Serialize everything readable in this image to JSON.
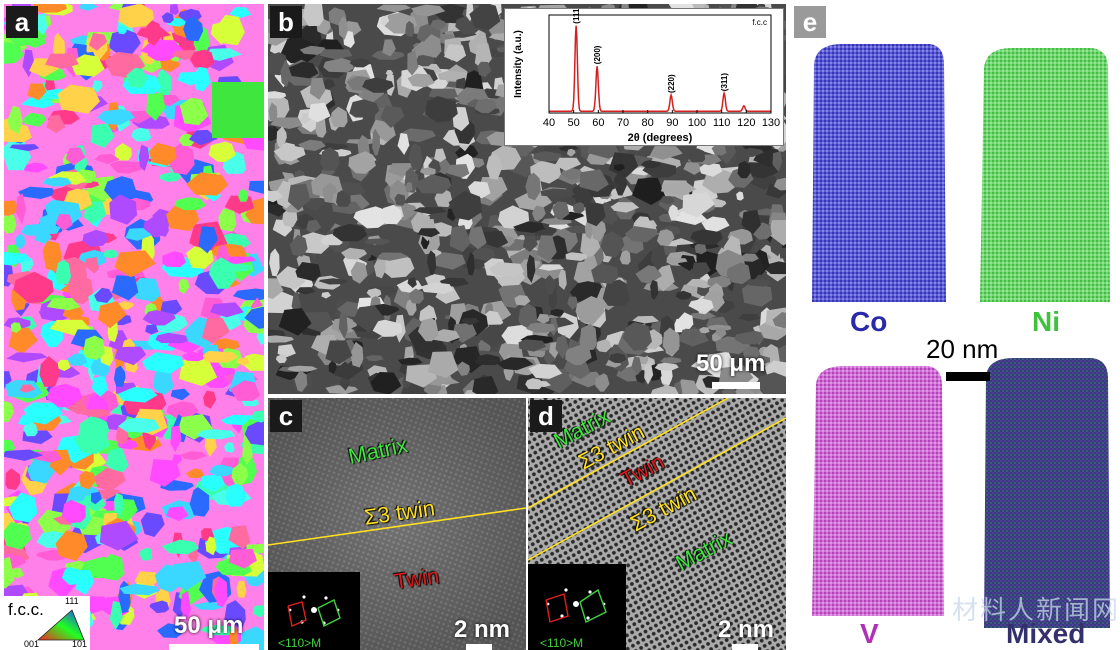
{
  "panel_a": {
    "label": "a",
    "scale": "50 μm",
    "legend": {
      "title": "f.c.c.",
      "top": "111",
      "left": "001",
      "right": "101"
    }
  },
  "panel_b": {
    "label": "b",
    "scale": "50 μm",
    "inset": {
      "type": "line",
      "title": "f.c.c",
      "xlabel": "2θ (degrees)",
      "ylabel": "Intensity (a.u.)",
      "xlim": [
        40,
        130
      ],
      "xticks": [
        "40",
        "50",
        "60",
        "70",
        "80",
        "90",
        "100",
        "110",
        "120",
        "130"
      ],
      "peaks": [
        {
          "label": "(111)",
          "x": 51,
          "height": 0.95
        },
        {
          "label": "(200)",
          "x": 59.5,
          "height": 0.5
        },
        {
          "label": "(220)",
          "x": 89.5,
          "height": 0.18
        },
        {
          "label": "(311)",
          "x": 111,
          "height": 0.2
        },
        {
          "label": "",
          "x": 119,
          "height": 0.06
        }
      ]
    }
  },
  "panel_c": {
    "label": "c",
    "matrix": "Matrix",
    "twin_boundary": "Σ3 twin",
    "twin": "Twin",
    "zone_axis": "<110>M",
    "scale": "2 nm"
  },
  "panel_d": {
    "label": "d",
    "matrix_top": "Matrix",
    "twin_boundary_1": "Σ3 twin",
    "twin": "Twin",
    "twin_boundary_2": "Σ3 twin",
    "matrix_bottom": "Matrix",
    "zone_axis": "<110>M",
    "scale": "2 nm"
  },
  "panel_e": {
    "label": "e",
    "scale": "20 nm",
    "elements": [
      {
        "name": "Co",
        "color": "#2a2aa8"
      },
      {
        "name": "Ni",
        "color": "#3ec23e"
      },
      {
        "name": "V",
        "color": "#b030b8"
      },
      {
        "name": "Mixed",
        "color": "#34306e"
      }
    ]
  },
  "watermark": "材料人新闻网",
  "colors": {
    "matrix_text": "#3ee63e",
    "twin_text": "#d81a1a",
    "boundary": "#ffe020",
    "peak": "#d42020"
  }
}
